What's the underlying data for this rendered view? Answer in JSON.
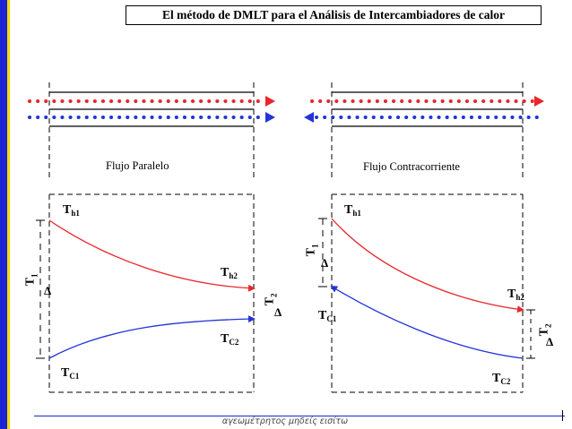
{
  "title": "El método de DMLT para el Análisis de Intercambiadores de calor",
  "footer": "αγεωμέτρητος μηδείς εισίτω",
  "colors": {
    "hot": "#e8262b",
    "cold": "#2433d8",
    "accent": "#1a23d6",
    "accent2": "#f5d800"
  },
  "left_panel": {
    "caption": "Flujo Paralelo",
    "th1_main": "T",
    "th1_sub": "h1",
    "th2_main": "T",
    "th2_sub": "h2",
    "tc1_main": "T",
    "tc1_sub": "C1",
    "tc2_main": "T",
    "tc2_sub": "C2",
    "dt1_main": "T",
    "dt1_sub": "1",
    "dt1_delta": "Δ",
    "dt2_main": "T",
    "dt2_sub": "2",
    "dt2_delta": "Δ"
  },
  "right_panel": {
    "caption": "Flujo Contracorriente",
    "th1_main": "T",
    "th1_sub": "h1",
    "th2_main": "T",
    "th2_sub": "h2",
    "tc1_main": "T",
    "tc1_sub": "C1",
    "tc2_main": "T",
    "tc2_sub": "C2",
    "dt1_main": "T",
    "dt1_sub": "1",
    "dt1_delta": "Δ",
    "dt2_main": "T",
    "dt2_sub": "2",
    "dt2_delta": "Δ"
  }
}
